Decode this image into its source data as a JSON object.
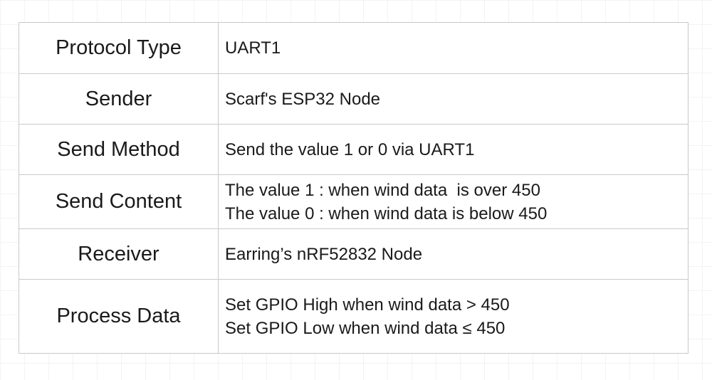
{
  "table": {
    "rows": [
      {
        "key": "Protocol Type",
        "lines": [
          "UART1"
        ]
      },
      {
        "key": "Sender",
        "lines": [
          "Scarf's ESP32 Node"
        ]
      },
      {
        "key": "Send Method",
        "lines": [
          "Send the value 1 or 0 via UART1"
        ]
      },
      {
        "key": "Send Content",
        "lines": [
          "The value 1 : when wind data  is over 450",
          "The value 0 : when wind data is below 450"
        ]
      },
      {
        "key": "Receiver",
        "lines": [
          "Earring’s nRF52832 Node"
        ]
      },
      {
        "key": "Process Data",
        "lines": [
          "Set GPIO High when wind data > 450",
          "Set GPIO Low when wind data ≤ 450"
        ]
      }
    ]
  }
}
